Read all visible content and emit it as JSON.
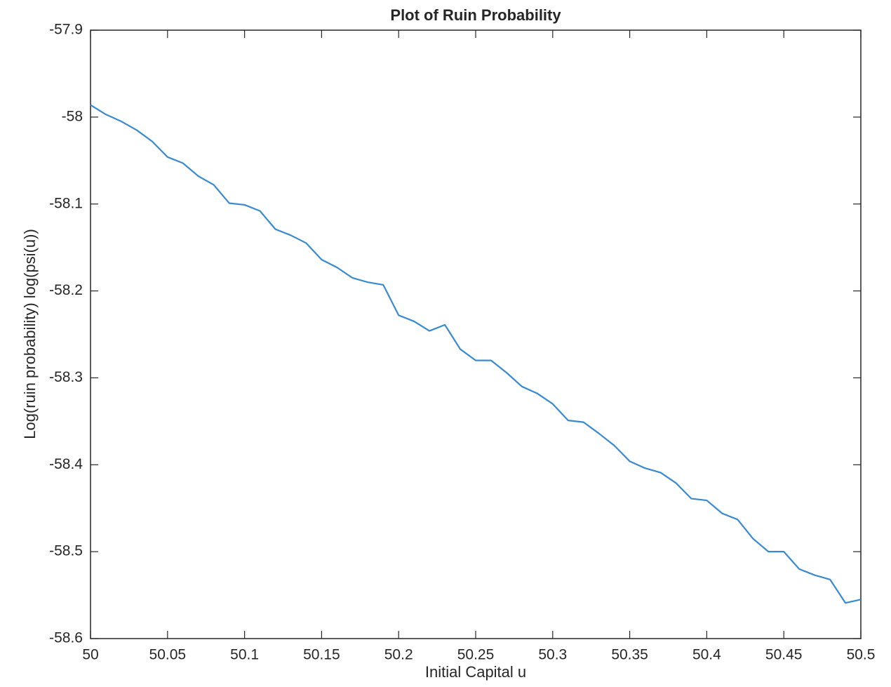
{
  "chart_data": {
    "type": "line",
    "title": "Plot of Ruin Probability",
    "x_label": "Initial Capital u",
    "y_label": "Log(ruin probability) log(psi(u))",
    "x": [
      50,
      50.01,
      50.02,
      50.03,
      50.04,
      50.05,
      50.06,
      50.07,
      50.08,
      50.09,
      50.1,
      50.11,
      50.12,
      50.13,
      50.14,
      50.15,
      50.16,
      50.17,
      50.18,
      50.19,
      50.2,
      50.21,
      50.22,
      50.23,
      50.24,
      50.25,
      50.26,
      50.27,
      50.28,
      50.29,
      50.3,
      50.31,
      50.32,
      50.33,
      50.34,
      50.35,
      50.36,
      50.37,
      50.38,
      50.39,
      50.4,
      50.41,
      50.42,
      50.43,
      50.44,
      50.45,
      50.46,
      50.47,
      50.48,
      50.49,
      50.5
    ],
    "series": [
      {
        "color": "#3a8ad0",
        "values": [
          -57.986,
          -57.997,
          -58.005,
          -58.015,
          -58.028,
          -58.046,
          -58.053,
          -58.068,
          -58.078,
          -58.099,
          -58.101,
          -58.108,
          -58.129,
          -58.136,
          -58.145,
          -58.164,
          -58.173,
          -58.185,
          -58.19,
          -58.193,
          -58.228,
          -58.235,
          -58.246,
          -58.239,
          -58.267,
          -58.28,
          -58.28,
          -58.294,
          -58.31,
          -58.318,
          -58.33,
          -58.349,
          -58.351,
          -58.364,
          -58.378,
          -58.396,
          -58.404,
          -58.409,
          -58.421,
          -58.439,
          -58.441,
          -58.456,
          -58.463,
          -58.485,
          -58.5,
          -58.5,
          -58.52,
          -58.527,
          -58.532,
          -58.559,
          -58.555
        ]
      }
    ],
    "xlim": [
      50,
      50.5
    ],
    "xticks": [
      50,
      50.05,
      50.1,
      50.15,
      50.2,
      50.25,
      50.3,
      50.35,
      50.4,
      50.45,
      50.5
    ],
    "ylim": [
      -58.6,
      -57.9
    ],
    "yticks": [
      -58.6,
      -58.5,
      -58.4,
      -58.3,
      -58.2,
      -58.1,
      -58,
      -57.9
    ],
    "grid": false
  }
}
